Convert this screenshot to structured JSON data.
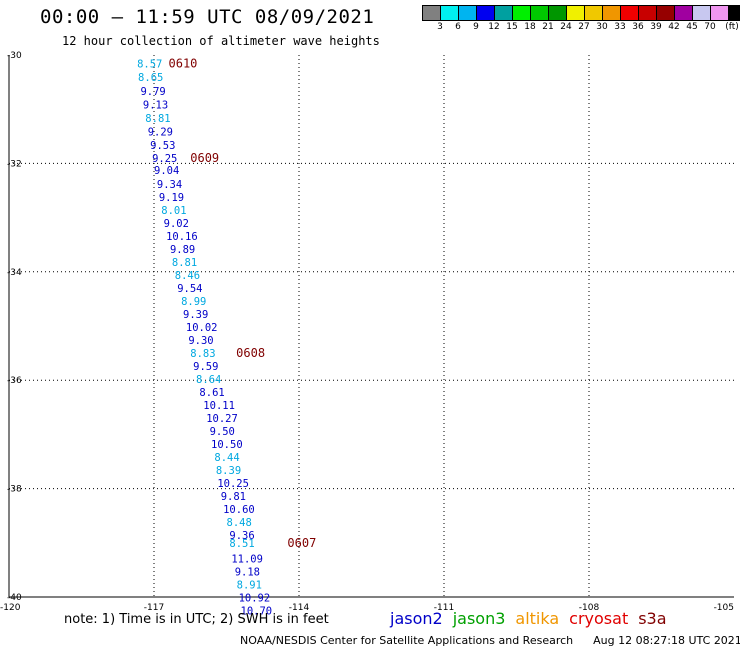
{
  "header": {
    "title": "00:00 – 11:59 UTC 08/09/2021",
    "subtitle": "12 hour collection of altimeter wave heights"
  },
  "legend": {
    "swatches": [
      {
        "color": "#808080",
        "label": ""
      },
      {
        "color": "#00f0f0",
        "label": "3"
      },
      {
        "color": "#00b4f0",
        "label": "6"
      },
      {
        "color": "#0000f0",
        "label": "9"
      },
      {
        "color": "#00a0a0",
        "label": "12"
      },
      {
        "color": "#00f000",
        "label": "15"
      },
      {
        "color": "#00c800",
        "label": "18"
      },
      {
        "color": "#009600",
        "label": "21"
      },
      {
        "color": "#f0f000",
        "label": "24"
      },
      {
        "color": "#f0c800",
        "label": "27"
      },
      {
        "color": "#f09600",
        "label": "30"
      },
      {
        "color": "#f00000",
        "label": "33"
      },
      {
        "color": "#c80000",
        "label": "36"
      },
      {
        "color": "#960000",
        "label": "39"
      },
      {
        "color": "#a000a0",
        "label": "42"
      },
      {
        "color": "#c8c8f0",
        "label": "45"
      },
      {
        "color": "#f096f0",
        "label": "70"
      },
      {
        "color": "#000000",
        "label": ""
      }
    ],
    "unit": "(ft)"
  },
  "axes": {
    "lat_labels": [
      "-30",
      "-32",
      "-34",
      "-36",
      "-38",
      "-40"
    ],
    "lon_labels": [
      "-120",
      "-117",
      "-114",
      "-111",
      "-108",
      "-105"
    ]
  },
  "colors": {
    "dark_blue": "#0000c8",
    "light_blue": "#00a8e0",
    "time_label": "#800000"
  },
  "observations": [
    {
      "lon": -117.35,
      "lat": -30.16,
      "v": "8.57",
      "c": "light_blue"
    },
    {
      "lon": -117.33,
      "lat": -30.41,
      "v": "8.65",
      "c": "light_blue"
    },
    {
      "lon": -117.28,
      "lat": -30.66,
      "v": "9.79",
      "c": "dark_blue"
    },
    {
      "lon": -117.23,
      "lat": -30.91,
      "v": "9.13",
      "c": "dark_blue"
    },
    {
      "lon": -117.18,
      "lat": -31.16,
      "v": "8.81",
      "c": "light_blue"
    },
    {
      "lon": -117.13,
      "lat": -31.41,
      "v": "9.29",
      "c": "dark_blue"
    },
    {
      "lon": -117.08,
      "lat": -31.66,
      "v": "9.53",
      "c": "dark_blue"
    },
    {
      "lon": -117.04,
      "lat": -31.9,
      "v": "9.25",
      "c": "dark_blue"
    },
    {
      "lon": -117.0,
      "lat": -32.12,
      "v": "9.04",
      "c": "dark_blue"
    },
    {
      "lon": -116.94,
      "lat": -32.38,
      "v": "9.34",
      "c": "dark_blue"
    },
    {
      "lon": -116.9,
      "lat": -32.62,
      "v": "9.19",
      "c": "dark_blue"
    },
    {
      "lon": -116.85,
      "lat": -32.86,
      "v": "8.01",
      "c": "light_blue"
    },
    {
      "lon": -116.8,
      "lat": -33.1,
      "v": "9.02",
      "c": "dark_blue"
    },
    {
      "lon": -116.75,
      "lat": -33.34,
      "v": "10.16",
      "c": "dark_blue"
    },
    {
      "lon": -116.67,
      "lat": -33.58,
      "v": "9.89",
      "c": "dark_blue"
    },
    {
      "lon": -116.63,
      "lat": -33.82,
      "v": "8.81",
      "c": "light_blue"
    },
    {
      "lon": -116.57,
      "lat": -34.06,
      "v": "8.46",
      "c": "light_blue"
    },
    {
      "lon": -116.52,
      "lat": -34.3,
      "v": "9.54",
      "c": "dark_blue"
    },
    {
      "lon": -116.44,
      "lat": -34.54,
      "v": "8.99",
      "c": "light_blue"
    },
    {
      "lon": -116.4,
      "lat": -34.78,
      "v": "9.39",
      "c": "dark_blue"
    },
    {
      "lon": -116.34,
      "lat": -35.02,
      "v": "10.02",
      "c": "dark_blue"
    },
    {
      "lon": -116.29,
      "lat": -35.26,
      "v": "9.30",
      "c": "dark_blue"
    },
    {
      "lon": -116.25,
      "lat": -35.5,
      "v": "8.83",
      "c": "light_blue"
    },
    {
      "lon": -116.19,
      "lat": -35.74,
      "v": "9.59",
      "c": "dark_blue"
    },
    {
      "lon": -116.13,
      "lat": -35.98,
      "v": "8.64",
      "c": "light_blue"
    },
    {
      "lon": -116.06,
      "lat": -36.22,
      "v": "8.61",
      "c": "dark_blue"
    },
    {
      "lon": -115.98,
      "lat": -36.46,
      "v": "10.11",
      "c": "dark_blue"
    },
    {
      "lon": -115.92,
      "lat": -36.7,
      "v": "10.27",
      "c": "dark_blue"
    },
    {
      "lon": -115.85,
      "lat": -36.94,
      "v": "9.50",
      "c": "dark_blue"
    },
    {
      "lon": -115.82,
      "lat": -37.18,
      "v": "10.50",
      "c": "dark_blue"
    },
    {
      "lon": -115.75,
      "lat": -37.42,
      "v": "8.44",
      "c": "light_blue"
    },
    {
      "lon": -115.72,
      "lat": -37.66,
      "v": "8.39",
      "c": "light_blue"
    },
    {
      "lon": -115.69,
      "lat": -37.9,
      "v": "10.25",
      "c": "dark_blue"
    },
    {
      "lon": -115.62,
      "lat": -38.14,
      "v": "9.81",
      "c": "dark_blue"
    },
    {
      "lon": -115.57,
      "lat": -38.38,
      "v": "10.60",
      "c": "dark_blue"
    },
    {
      "lon": -115.5,
      "lat": -38.62,
      "v": "8.48",
      "c": "light_blue"
    },
    {
      "lon": -115.44,
      "lat": -38.86,
      "v": "9.36",
      "c": "dark_blue"
    },
    {
      "lon": -115.44,
      "lat": -39.0,
      "v": "8.51",
      "c": "light_blue"
    },
    {
      "lon": -115.4,
      "lat": -39.29,
      "v": "11.09",
      "c": "dark_blue"
    },
    {
      "lon": -115.33,
      "lat": -39.53,
      "v": "9.18",
      "c": "dark_blue"
    },
    {
      "lon": -115.29,
      "lat": -39.77,
      "v": "8.91",
      "c": "light_blue"
    },
    {
      "lon": -115.25,
      "lat": -40.01,
      "v": "10.92",
      "c": "dark_blue"
    },
    {
      "lon": -115.21,
      "lat": -40.25,
      "v": "10.70",
      "c": "dark_blue"
    }
  ],
  "time_labels": [
    {
      "lon": -116.7,
      "lat": -30.16,
      "t": "0610"
    },
    {
      "lon": -116.25,
      "lat": -31.9,
      "t": "0609"
    },
    {
      "lon": -115.3,
      "lat": -35.5,
      "t": "0608"
    },
    {
      "lon": -114.24,
      "lat": -39.0,
      "t": "0607"
    }
  ],
  "note": "note: 1) Time is in UTC; 2) SWH is in feet",
  "satellites": [
    {
      "name": "jason2",
      "color": "#0000c8"
    },
    {
      "name": "jason3",
      "color": "#00a000"
    },
    {
      "name": "altika",
      "color": "#f09600"
    },
    {
      "name": "cryosat",
      "color": "#e00000"
    },
    {
      "name": "s3a",
      "color": "#800000"
    }
  ],
  "footer": {
    "credit": "NOAA/NESDIS Center for Satellite Applications and Research",
    "timestamp": "Aug 12 08:27:18 UTC 2021"
  }
}
